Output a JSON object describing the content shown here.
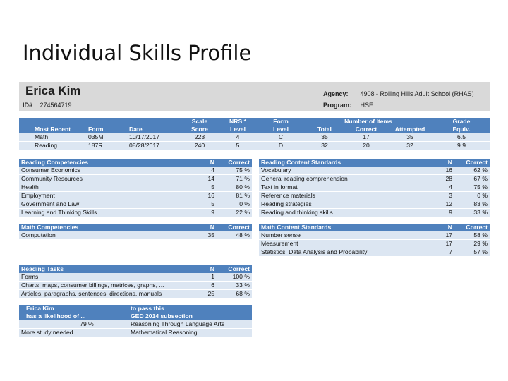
{
  "slide_title": "Individual Skills Profile",
  "student": {
    "name": "Erica Kim",
    "id_label": "ID#",
    "id_value": "274564719",
    "agency_label": "Agency:",
    "agency_value": "4908 - Rolling Hills Adult School (RHAS)",
    "program_label": "Program:",
    "program_value": "HSE"
  },
  "summary": {
    "header_top": [
      "",
      "",
      "",
      "Scale",
      "NRS *",
      "Form",
      "Number of Items",
      "Grade"
    ],
    "header_bottom": [
      "Most Recent",
      "Form",
      "Date",
      "Score",
      "Level",
      "Level",
      "Total",
      "Correct",
      "Attempted",
      "Equiv."
    ],
    "rows": [
      [
        "Math",
        "035M",
        "10/17/2017",
        "223",
        "4",
        "C",
        "35",
        "17",
        "35",
        "6.5"
      ],
      [
        "Reading",
        "187R",
        "08/28/2017",
        "240",
        "5",
        "D",
        "32",
        "20",
        "32",
        "9.9"
      ]
    ]
  },
  "reading_competencies": {
    "header": [
      "Reading Competencies",
      "N",
      "Correct"
    ],
    "rows": [
      [
        "Consumer Economics",
        "4",
        "75 %"
      ],
      [
        "Community Resources",
        "14",
        "71 %"
      ],
      [
        "Health",
        "5",
        "80 %"
      ],
      [
        "Employment",
        "16",
        "81 %"
      ],
      [
        "Government and Law",
        "5",
        "0 %"
      ],
      [
        "Learning and Thinking Skills",
        "9",
        "22 %"
      ]
    ]
  },
  "reading_content": {
    "header": [
      "Reading Content Standards",
      "N",
      "Correct"
    ],
    "rows": [
      [
        "Vocabulary",
        "16",
        "62 %"
      ],
      [
        "General reading comprehension",
        "28",
        "67 %"
      ],
      [
        "Text in format",
        "4",
        "75 %"
      ],
      [
        "Reference materials",
        "3",
        "0 %"
      ],
      [
        "Reading strategies",
        "12",
        "83 %"
      ],
      [
        "Reading and thinking skills",
        "9",
        "33 %"
      ]
    ]
  },
  "math_competencies": {
    "header": [
      "Math Competencies",
      "N",
      "Correct"
    ],
    "rows": [
      [
        "Computation",
        "35",
        "48 %"
      ]
    ]
  },
  "math_content": {
    "header": [
      "Math Content Standards",
      "N",
      "Correct"
    ],
    "rows": [
      [
        "Number sense",
        "17",
        "58 %"
      ],
      [
        "Measurement",
        "17",
        "29 %"
      ],
      [
        "Statistics, Data Analysis and Probability",
        "7",
        "57 %"
      ]
    ]
  },
  "reading_tasks": {
    "header": [
      "Reading Tasks",
      "N",
      "Correct"
    ],
    "rows": [
      [
        "Forms",
        "1",
        "100 %"
      ],
      [
        "Charts, maps, consumer billings, matrices, graphs, ...",
        "6",
        "33 %"
      ],
      [
        "Articles, paragraphs, sentences, directions, manuals",
        "25",
        "68 %"
      ]
    ]
  },
  "likelihood": {
    "header_left_1": "Erica Kim",
    "header_left_2": "has a likelihood of ...",
    "header_right_1": "to pass this",
    "header_right_2": "GED 2014 subsection",
    "rows": [
      [
        "79 %",
        "Reasoning Through Language Arts"
      ],
      [
        "More study needed",
        "Mathematical Reasoning"
      ]
    ]
  }
}
